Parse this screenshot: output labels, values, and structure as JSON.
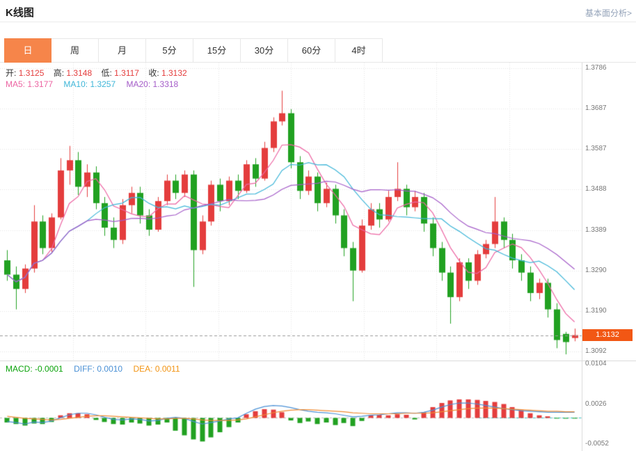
{
  "header": {
    "title": "K线图",
    "link": "基本面分析>"
  },
  "tabs": {
    "items": [
      "日",
      "周",
      "月",
      "5分",
      "15分",
      "30分",
      "60分",
      "4时"
    ],
    "active": "日"
  },
  "info": {
    "open_label": "开:",
    "open": "1.3125",
    "high_label": "高:",
    "high": "1.3148",
    "low_label": "低:",
    "low": "1.3117",
    "close_label": "收:",
    "close": "1.3132"
  },
  "ma": {
    "ma5_label": "MA5:",
    "ma5": "1.3177",
    "ma10_label": "MA10:",
    "ma10": "1.3257",
    "ma20_label": "MA20:",
    "ma20": "1.3318"
  },
  "macd_info": {
    "macd_label": "MACD:",
    "macd": "-0.0001",
    "diff_label": "DIFF:",
    "diff": "0.0010",
    "dea_label": "DEA:",
    "dea": "0.0011"
  },
  "price_tag": "1.3132",
  "colors": {
    "up": "#e43d3d",
    "down": "#21a121",
    "ma5": "#ec64a2",
    "ma10": "#3fb6d8",
    "ma20": "#a45cc8",
    "diff_line": "#4a90d5",
    "dea_line": "#ef8b33",
    "tab_active_bg": "#f6854a",
    "price_tag_bg": "#f25714",
    "macd_text_green": "#0ba30b",
    "current_line_cyan": "#2ec7c9"
  },
  "chart_data": {
    "type": "candlestick",
    "title": "K线图",
    "period": "日",
    "y_axis": [
      "1.3786",
      "1.3687",
      "1.3587",
      "1.3488",
      "1.3389",
      "1.3290",
      "1.3190",
      "1.3092"
    ],
    "macd_axis": [
      "0.0104",
      "0.0026",
      "-0.0052"
    ],
    "current_price": 1.3132,
    "ma_periods": [
      5,
      10,
      20
    ],
    "candles": [
      [
        1.3315,
        1.334,
        1.3265,
        1.328
      ],
      [
        1.328,
        1.33,
        1.3195,
        1.3245
      ],
      [
        1.3245,
        1.3305,
        1.3235,
        1.3295
      ],
      [
        1.3295,
        1.345,
        1.3285,
        1.341
      ],
      [
        1.341,
        1.3425,
        1.333,
        1.3345
      ],
      [
        1.3345,
        1.343,
        1.3335,
        1.342
      ],
      [
        1.342,
        1.3565,
        1.3415,
        1.3535
      ],
      [
        1.3535,
        1.3595,
        1.35,
        1.356
      ],
      [
        1.356,
        1.358,
        1.3475,
        1.3495
      ],
      [
        1.3495,
        1.355,
        1.347,
        1.353
      ],
      [
        1.353,
        1.3545,
        1.344,
        1.3455
      ],
      [
        1.3455,
        1.347,
        1.3375,
        1.3395
      ],
      [
        1.3395,
        1.342,
        1.3345,
        1.3365
      ],
      [
        1.3365,
        1.3465,
        1.3355,
        1.345
      ],
      [
        1.345,
        1.3495,
        1.343,
        1.348
      ],
      [
        1.348,
        1.3495,
        1.3405,
        1.3425
      ],
      [
        1.3425,
        1.344,
        1.3375,
        1.339
      ],
      [
        1.339,
        1.347,
        1.3385,
        1.346
      ],
      [
        1.346,
        1.3525,
        1.345,
        1.351
      ],
      [
        1.351,
        1.3525,
        1.3465,
        1.348
      ],
      [
        1.348,
        1.3535,
        1.347,
        1.3525
      ],
      [
        1.3525,
        1.3535,
        1.325,
        1.334
      ],
      [
        1.334,
        1.3425,
        1.333,
        1.341
      ],
      [
        1.341,
        1.351,
        1.34,
        1.35
      ],
      [
        1.35,
        1.3515,
        1.3435,
        1.346
      ],
      [
        1.346,
        1.352,
        1.345,
        1.351
      ],
      [
        1.351,
        1.3525,
        1.3465,
        1.3485
      ],
      [
        1.3485,
        1.356,
        1.348,
        1.355
      ],
      [
        1.355,
        1.3565,
        1.3495,
        1.3515
      ],
      [
        1.3515,
        1.3605,
        1.351,
        1.359
      ],
      [
        1.359,
        1.3665,
        1.358,
        1.3655
      ],
      [
        1.3655,
        1.373,
        1.3645,
        1.3675
      ],
      [
        1.3675,
        1.3685,
        1.354,
        1.3555
      ],
      [
        1.3555,
        1.357,
        1.3465,
        1.3485
      ],
      [
        1.3485,
        1.3535,
        1.3475,
        1.352
      ],
      [
        1.352,
        1.353,
        1.3435,
        1.3455
      ],
      [
        1.3455,
        1.3505,
        1.3445,
        1.349
      ],
      [
        1.349,
        1.35,
        1.3405,
        1.3425
      ],
      [
        1.3425,
        1.344,
        1.3325,
        1.3345
      ],
      [
        1.3345,
        1.336,
        1.3215,
        1.329
      ],
      [
        1.329,
        1.3415,
        1.3285,
        1.34
      ],
      [
        1.34,
        1.3455,
        1.339,
        1.344
      ],
      [
        1.344,
        1.3455,
        1.3395,
        1.3415
      ],
      [
        1.3415,
        1.3485,
        1.341,
        1.347
      ],
      [
        1.347,
        1.3555,
        1.346,
        1.349
      ],
      [
        1.349,
        1.35,
        1.3425,
        1.3445
      ],
      [
        1.3445,
        1.3485,
        1.3435,
        1.347
      ],
      [
        1.347,
        1.348,
        1.3385,
        1.3405
      ],
      [
        1.3405,
        1.342,
        1.3325,
        1.3345
      ],
      [
        1.3345,
        1.336,
        1.3265,
        1.3285
      ],
      [
        1.3285,
        1.33,
        1.316,
        1.3225
      ],
      [
        1.3225,
        1.332,
        1.3215,
        1.331
      ],
      [
        1.331,
        1.332,
        1.3245,
        1.3265
      ],
      [
        1.3265,
        1.334,
        1.3255,
        1.333
      ],
      [
        1.333,
        1.3365,
        1.332,
        1.3355
      ],
      [
        1.3355,
        1.347,
        1.3345,
        1.341
      ],
      [
        1.341,
        1.342,
        1.3345,
        1.3365
      ],
      [
        1.3365,
        1.338,
        1.3295,
        1.3315
      ],
      [
        1.3315,
        1.333,
        1.3265,
        1.3285
      ],
      [
        1.3285,
        1.33,
        1.3215,
        1.3235
      ],
      [
        1.3235,
        1.327,
        1.322,
        1.326
      ],
      [
        1.326,
        1.327,
        1.3175,
        1.3195
      ],
      [
        1.3195,
        1.321,
        1.31,
        1.312
      ],
      [
        1.3135,
        1.314,
        1.3085,
        1.3115
      ],
      [
        1.3125,
        1.3148,
        1.3117,
        1.3132
      ]
    ],
    "macd": {
      "hist": [
        -0.001,
        -0.0013,
        -0.0016,
        -0.0012,
        -0.0013,
        -0.0009,
        0.0004,
        0.0008,
        0.0008,
        0.0006,
        -0.0005,
        -0.0009,
        -0.0013,
        -0.0014,
        -0.001,
        -0.0012,
        -0.0016,
        -0.0014,
        -0.001,
        -0.0026,
        -0.0035,
        -0.0043,
        -0.0047,
        -0.0039,
        -0.0029,
        -0.0019,
        -0.001,
        0.0006,
        0.0012,
        0.0016,
        0.0015,
        0.001,
        -0.0006,
        -0.0011,
        -0.0008,
        -0.0013,
        -0.001,
        -0.0015,
        -0.0011,
        -0.0017,
        -0.0007,
        0.0004,
        0.0005,
        0.0004,
        0.0006,
        0.0005,
        -0.0004,
        0.001,
        0.002,
        0.0028,
        0.0033,
        0.0035,
        0.0035,
        0.0034,
        0.0032,
        0.003,
        0.0026,
        0.002,
        0.0014,
        0.0008,
        0.0004,
        0.0002,
        -0.0001,
        -0.0002,
        -0.0001
      ],
      "diff": [
        -0.0008,
        -0.001,
        -0.0013,
        -0.0009,
        -0.001,
        -0.0007,
        -0.0001,
        0.0005,
        0.0008,
        0.0008,
        0.0005,
        0.0,
        -0.0004,
        -0.0005,
        -0.0003,
        -0.0004,
        -0.0007,
        -0.0006,
        -0.0002,
        0.0,
        -0.0002,
        -0.0008,
        -0.0013,
        -0.001,
        -0.0007,
        -0.0003,
        -0.0001,
        0.0008,
        0.0016,
        0.0021,
        0.0023,
        0.0022,
        0.0019,
        0.0015,
        0.0012,
        0.001,
        0.0009,
        0.0007,
        0.0004,
        0.0001,
        0.0002,
        0.0004,
        0.0005,
        0.0007,
        0.0009,
        0.0009,
        0.0008,
        0.001,
        0.0014,
        0.002,
        0.0025,
        0.0028,
        0.0028,
        0.0026,
        0.0023,
        0.002,
        0.0017,
        0.0015,
        0.0013,
        0.0012,
        0.0011,
        0.001,
        0.001,
        0.001,
        0.001
      ],
      "dea": [
        0.0002,
        0.0,
        -0.0002,
        -0.0003,
        -0.0004,
        -0.0005,
        -0.0004,
        -0.0002,
        0.0,
        0.0002,
        0.0003,
        0.0003,
        0.0002,
        0.0001,
        0.0,
        -0.0001,
        -0.0002,
        -0.0003,
        -0.0003,
        -0.0002,
        -0.0002,
        -0.0003,
        -0.0005,
        -0.0006,
        -0.0006,
        -0.0006,
        -0.0005,
        -0.0003,
        0.0001,
        0.0005,
        0.0009,
        0.0012,
        0.0014,
        0.0015,
        0.0015,
        0.0014,
        0.0013,
        0.0012,
        0.0011,
        0.0009,
        0.0008,
        0.0007,
        0.0007,
        0.0007,
        0.0007,
        0.0008,
        0.0008,
        0.0008,
        0.0009,
        0.0011,
        0.0013,
        0.0015,
        0.0017,
        0.0018,
        0.0018,
        0.0018,
        0.0017,
        0.0016,
        0.0015,
        0.0014,
        0.0013,
        0.0012,
        0.0012,
        0.0011,
        0.0011
      ]
    }
  }
}
